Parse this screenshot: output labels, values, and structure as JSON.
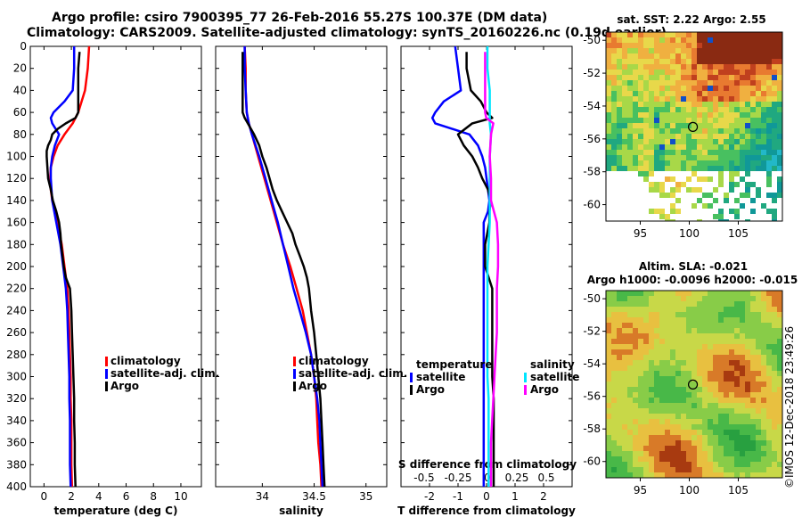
{
  "title": {
    "line1": "Argo profile: csiro 7900395_77 26-Feb-2016 55.27S 100.37E (DM data)",
    "line2": "Climatology: CARS2009. Satellite-adjusted climatology: synTS_20160226.nc (0.19d earlier)"
  },
  "colors": {
    "climatology": "#ff0000",
    "satellite": "#0000ff",
    "argo": "#000000",
    "sat_salinity": "#00e5ff",
    "argo_salinity": "#ff00ff"
  },
  "chart_data": [
    {
      "type": "line",
      "name": "temperature-panel",
      "xlabel": "temperature (deg C)",
      "ylabel": "depth",
      "xlim": [
        -1,
        11.5
      ],
      "ylim": [
        400,
        0
      ],
      "xticks": [
        "0",
        "2",
        "4",
        "6",
        "8",
        "10"
      ],
      "yticks": [
        "0",
        "20",
        "40",
        "60",
        "80",
        "100",
        "120",
        "140",
        "160",
        "180",
        "200",
        "220",
        "240",
        "260",
        "280",
        "300",
        "320",
        "340",
        "360",
        "380",
        "400"
      ],
      "legend": {
        "position": "lower-right",
        "entries": [
          "climatology",
          "satellite-adj. clim.",
          "Argo"
        ]
      },
      "series": [
        {
          "name": "climatology",
          "color": "#ff0000",
          "depth": [
            0,
            20,
            40,
            60,
            70,
            80,
            90,
            100,
            110,
            120,
            130,
            140,
            150,
            160,
            180,
            200,
            220,
            240,
            260,
            280,
            300,
            320,
            340,
            360,
            380,
            400
          ],
          "values": [
            3.3,
            3.2,
            3.0,
            2.5,
            2.1,
            1.5,
            1.0,
            0.7,
            0.5,
            0.45,
            0.5,
            0.6,
            0.8,
            1.0,
            1.3,
            1.5,
            1.7,
            1.8,
            1.85,
            1.9,
            1.95,
            1.95,
            2.0,
            2.0,
            2.0,
            2.05
          ]
        },
        {
          "name": "satellite-adj. clim.",
          "color": "#0000ff",
          "depth": [
            0,
            20,
            40,
            50,
            60,
            65,
            70,
            80,
            90,
            100,
            110,
            120,
            130,
            140,
            150,
            160,
            180,
            200,
            220,
            240,
            260,
            280,
            300,
            320,
            340,
            360,
            380,
            400
          ],
          "values": [
            2.2,
            2.2,
            2.1,
            1.5,
            0.7,
            0.5,
            0.6,
            1.1,
            0.8,
            0.6,
            0.5,
            0.5,
            0.55,
            0.6,
            0.75,
            0.9,
            1.2,
            1.4,
            1.6,
            1.7,
            1.75,
            1.8,
            1.85,
            1.85,
            1.9,
            1.9,
            1.9,
            1.95
          ]
        },
        {
          "name": "Argo",
          "color": "#000000",
          "depth": [
            5,
            20,
            40,
            60,
            65,
            70,
            75,
            80,
            85,
            90,
            95,
            100,
            110,
            120,
            130,
            140,
            150,
            160,
            170,
            180,
            190,
            200,
            210,
            220,
            240,
            260,
            280,
            300,
            320,
            340,
            360,
            380,
            400
          ],
          "values": [
            2.6,
            2.5,
            2.5,
            2.5,
            2.3,
            1.6,
            1.0,
            0.6,
            0.5,
            0.3,
            0.2,
            0.2,
            0.25,
            0.3,
            0.5,
            0.65,
            0.9,
            1.1,
            1.2,
            1.25,
            1.35,
            1.45,
            1.6,
            1.9,
            2.0,
            2.05,
            2.1,
            2.15,
            2.2,
            2.2,
            2.25,
            2.25,
            2.3
          ]
        }
      ]
    },
    {
      "type": "line",
      "name": "salinity-panel",
      "xlabel": "salinity",
      "ylabel": "depth",
      "xlim": [
        33.55,
        35.2
      ],
      "ylim": [
        400,
        0
      ],
      "xticks": [
        "34",
        "34.5",
        "35"
      ],
      "legend": {
        "position": "lower-right",
        "entries": [
          "climatology",
          "satellite-adj. clim.",
          "Argo"
        ]
      },
      "series": [
        {
          "name": "climatology",
          "color": "#ff0000",
          "depth": [
            0,
            20,
            40,
            60,
            70,
            80,
            100,
            120,
            140,
            160,
            180,
            200,
            220,
            240,
            260,
            280,
            300,
            320,
            340,
            360,
            380,
            400
          ],
          "values": [
            33.83,
            33.84,
            33.84,
            33.85,
            33.87,
            33.9,
            33.96,
            34.02,
            34.08,
            34.14,
            34.2,
            34.27,
            34.33,
            34.39,
            34.43,
            34.47,
            34.5,
            34.52,
            34.53,
            34.54,
            34.56,
            34.57
          ]
        },
        {
          "name": "satellite-adj. clim.",
          "color": "#0000ff",
          "depth": [
            0,
            20,
            40,
            60,
            70,
            80,
            100,
            120,
            140,
            160,
            180,
            200,
            220,
            240,
            260,
            280,
            300,
            320,
            340,
            360,
            380,
            400
          ],
          "values": [
            33.83,
            33.83,
            33.84,
            33.85,
            33.87,
            33.9,
            33.97,
            34.03,
            34.09,
            34.15,
            34.2,
            34.25,
            34.3,
            34.36,
            34.42,
            34.47,
            34.5,
            34.53,
            34.55,
            34.56,
            34.57,
            34.58
          ]
        },
        {
          "name": "Argo",
          "color": "#000000",
          "depth": [
            5,
            20,
            40,
            60,
            65,
            70,
            80,
            90,
            100,
            110,
            120,
            130,
            140,
            150,
            160,
            170,
            180,
            190,
            200,
            210,
            220,
            240,
            260,
            280,
            300,
            320,
            340,
            360,
            380,
            400
          ],
          "values": [
            33.81,
            33.81,
            33.81,
            33.81,
            33.83,
            33.86,
            33.92,
            33.97,
            34.0,
            34.04,
            34.07,
            34.1,
            34.14,
            34.19,
            34.24,
            34.29,
            34.32,
            34.36,
            34.4,
            34.43,
            34.45,
            34.47,
            34.5,
            34.52,
            34.54,
            34.56,
            34.57,
            34.58,
            34.59,
            34.6
          ]
        }
      ]
    },
    {
      "type": "line",
      "name": "difference-panel",
      "xlabel": "T difference from climatology",
      "ylabel": "depth",
      "xlim": [
        -3,
        3
      ],
      "ylim": [
        400,
        0
      ],
      "xticks": [
        "-2",
        "-1",
        "0",
        "1",
        "2"
      ],
      "secondary_axis": {
        "label": "S difference from climatology",
        "ticks": [
          "-0.5",
          "-0.25",
          "0",
          "0.25",
          "0.5"
        ]
      },
      "legend": {
        "position": "lower-center",
        "temperature_title": "temperature",
        "salinity_title": "salinity",
        "temperature_entries": [
          "satellite",
          "Argo"
        ],
        "salinity_entries": [
          "satellite",
          "Argo"
        ]
      },
      "series": [
        {
          "name": "satellite (temperature)",
          "color": "#0000ff",
          "depth": [
            0,
            20,
            40,
            50,
            60,
            65,
            70,
            80,
            90,
            100,
            110,
            120,
            130,
            140,
            150,
            160,
            180,
            200,
            220,
            240,
            260,
            280,
            300,
            320,
            340,
            360,
            380,
            400
          ],
          "values": [
            -1.1,
            -1.0,
            -0.9,
            -1.5,
            -1.8,
            -1.9,
            -1.8,
            -0.6,
            -0.3,
            -0.15,
            -0.05,
            0.0,
            0.05,
            0.1,
            0.05,
            -0.1,
            -0.1,
            -0.1,
            -0.1,
            -0.1,
            -0.1,
            -0.1,
            -0.1,
            -0.1,
            -0.1,
            -0.1,
            -0.1,
            -0.1
          ]
        },
        {
          "name": "Argo (temperature)",
          "color": "#000000",
          "depth": [
            5,
            20,
            40,
            50,
            60,
            65,
            70,
            80,
            90,
            100,
            110,
            120,
            130,
            140,
            150,
            160,
            180,
            200,
            220,
            240,
            260,
            280,
            300,
            320,
            340,
            360,
            380,
            400
          ],
          "values": [
            -0.7,
            -0.7,
            -0.55,
            -0.2,
            0.0,
            0.2,
            -0.5,
            -1.0,
            -0.8,
            -0.5,
            -0.3,
            -0.15,
            0.05,
            0.15,
            0.1,
            0.1,
            -0.05,
            -0.05,
            0.2,
            0.2,
            0.2,
            0.2,
            0.2,
            0.25,
            0.25,
            0.25,
            0.25,
            0.25
          ]
        },
        {
          "name": "satellite (salinity)",
          "color": "#00e5ff",
          "axis": "secondary",
          "depth": [
            0,
            20,
            40,
            60,
            70,
            80,
            100,
            120,
            140,
            160,
            180,
            200,
            220,
            240,
            260,
            280,
            300,
            320,
            340,
            360,
            380,
            400
          ],
          "values": [
            0.0,
            0.0,
            0.02,
            0.02,
            0.02,
            0.03,
            0.02,
            0.02,
            0.02,
            0.02,
            0.01,
            0.0,
            0.0,
            0.0,
            0.0,
            0.0,
            0.0,
            0.01,
            0.01,
            0.01,
            0.01,
            0.01
          ]
        },
        {
          "name": "Argo (salinity)",
          "color": "#ff00ff",
          "axis": "secondary",
          "depth": [
            5,
            20,
            40,
            60,
            65,
            70,
            80,
            100,
            120,
            140,
            160,
            180,
            200,
            220,
            240,
            260,
            280,
            300,
            320,
            340,
            360,
            380,
            400
          ],
          "values": [
            -0.02,
            -0.02,
            -0.02,
            -0.02,
            -0.01,
            0.05,
            0.03,
            0.02,
            0.03,
            0.03,
            0.08,
            0.09,
            0.09,
            0.08,
            0.08,
            0.08,
            0.07,
            0.06,
            0.05,
            0.04,
            0.03,
            0.03,
            0.03
          ]
        }
      ]
    },
    {
      "type": "heatmap",
      "name": "sst-map",
      "title": "sat. SST: 2.22 Argo: 2.55",
      "xticks": [
        "95",
        "100",
        "105"
      ],
      "yticks": [
        "-50",
        "-52",
        "-54",
        "-56",
        "-58",
        "-60"
      ],
      "xlim": [
        91.5,
        109.5
      ],
      "ylim": [
        -61,
        -49.5
      ],
      "marker": {
        "lon": 100.37,
        "lat": -55.27
      }
    },
    {
      "type": "heatmap",
      "name": "sla-map",
      "title_line1": "Altim. SLA: -0.021",
      "title_line2": "Argo h1000: -0.0096 h2000: -0.015",
      "xticks": [
        "95",
        "100",
        "105"
      ],
      "yticks": [
        "-50",
        "-52",
        "-54",
        "-56",
        "-58",
        "-60"
      ],
      "xlim": [
        91.5,
        109.5
      ],
      "ylim": [
        -61,
        -49.5
      ],
      "marker": {
        "lon": 100.37,
        "lat": -55.27
      }
    }
  ],
  "watermark": "©IMOS 12-Dec-2018 23:49:26"
}
